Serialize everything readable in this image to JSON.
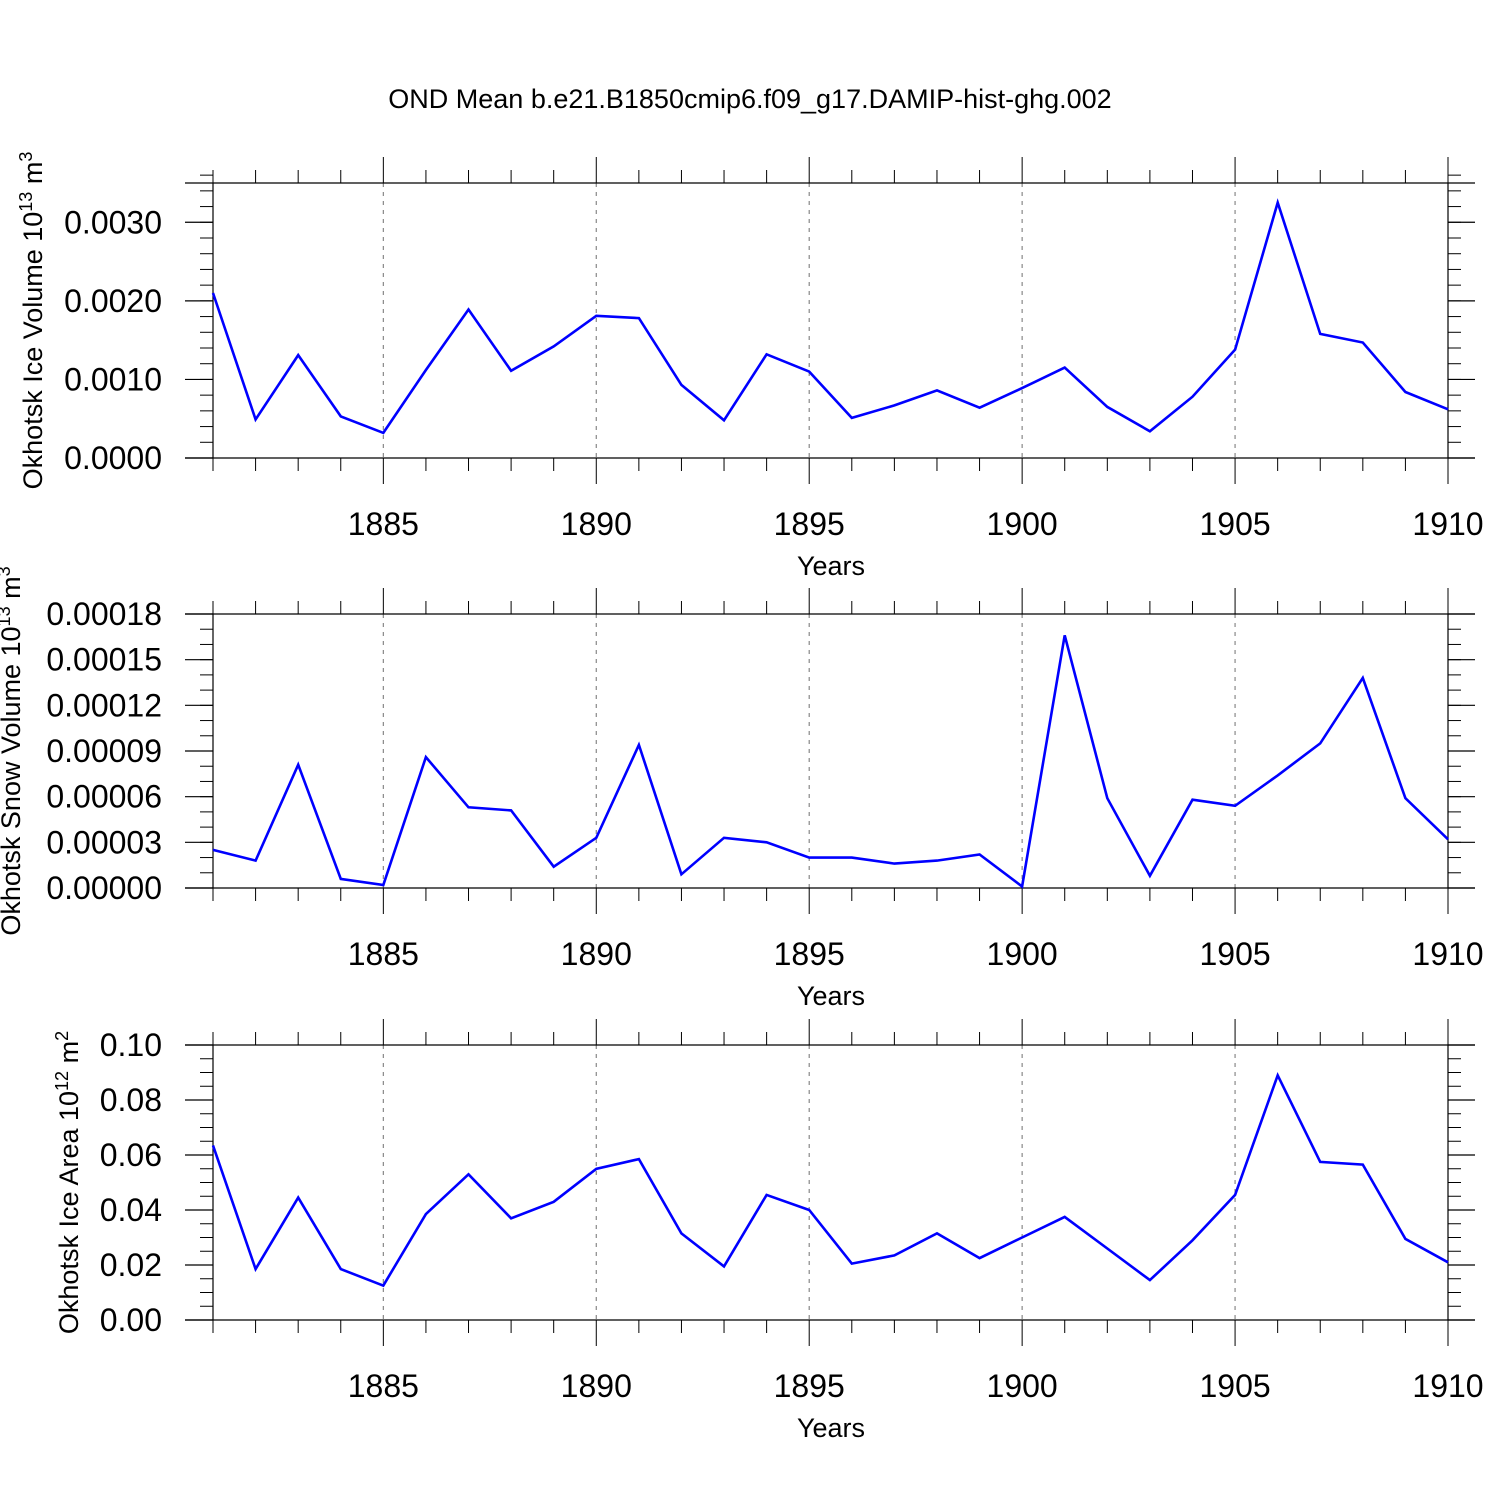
{
  "title": "OND Mean b.e21.B1850cmip6.f09_g17.DAMIP-hist-ghg.002",
  "style": {
    "line_color": "#0000ff",
    "axis_color": "#000000",
    "grid_color": "#888888"
  },
  "chart_data": [
    {
      "type": "line",
      "xlabel": "Years",
      "ylabel_main": "Okhotsk Ice Volume 10",
      "ylabel_exp": "13",
      "ylabel_unit": " m",
      "ylabel_unit_exp": "3",
      "xlim": [
        1881,
        1910.6
      ],
      "ylim": [
        0,
        0.0035
      ],
      "xticks": [
        1885,
        1890,
        1895,
        1900,
        1905,
        1910
      ],
      "yticks": [
        0,
        0.001,
        0.002,
        0.003
      ],
      "ytick_labels": [
        "0.0000",
        "0.0010",
        "0.0020",
        "0.0030"
      ],
      "yminor": 0.0002,
      "x": [
        1881,
        1882,
        1883,
        1884,
        1885,
        1886,
        1887,
        1888,
        1889,
        1890,
        1891,
        1892,
        1893,
        1894,
        1895,
        1896,
        1897,
        1898,
        1899,
        1900,
        1901,
        1902,
        1903,
        1904,
        1905,
        1906,
        1907,
        1908,
        1909,
        1910
      ],
      "values": [
        0.0021,
        0.00049,
        0.00131,
        0.00053,
        0.00032,
        0.00112,
        0.00189,
        0.00111,
        0.00142,
        0.00181,
        0.00178,
        0.00093,
        0.00048,
        0.00132,
        0.0011,
        0.00051,
        0.00067,
        0.00086,
        0.00064,
        0.00089,
        0.00115,
        0.00065,
        0.00034,
        0.00078,
        0.00138,
        0.00325,
        0.00158,
        0.00147,
        0.00084,
        0.00062
      ]
    },
    {
      "type": "line",
      "xlabel": "Years",
      "ylabel_main": "Okhotsk Snow Volume 10",
      "ylabel_exp": "13",
      "ylabel_unit": " m",
      "ylabel_unit_exp": "3",
      "xlim": [
        1881,
        1910.6
      ],
      "ylim": [
        0,
        0.00018
      ],
      "xticks": [
        1885,
        1890,
        1895,
        1900,
        1905,
        1910
      ],
      "yticks": [
        0,
        3e-05,
        6e-05,
        9e-05,
        0.00012,
        0.00015,
        0.00018
      ],
      "ytick_labels": [
        "0.00000",
        "0.00003",
        "0.00006",
        "0.00009",
        "0.00012",
        "0.00015",
        "0.00018"
      ],
      "yminor": 1e-05,
      "x": [
        1881,
        1882,
        1883,
        1884,
        1885,
        1886,
        1887,
        1888,
        1889,
        1890,
        1891,
        1892,
        1893,
        1894,
        1895,
        1896,
        1897,
        1898,
        1899,
        1900,
        1901,
        1902,
        1903,
        1904,
        1905,
        1906,
        1907,
        1908,
        1909,
        1910
      ],
      "values": [
        2.5e-05,
        1.8e-05,
        8.1e-05,
        6e-06,
        2e-06,
        8.6e-05,
        5.3e-05,
        5.1e-05,
        1.4e-05,
        3.3e-05,
        9.4e-05,
        9e-06,
        3.3e-05,
        3e-05,
        2e-05,
        2e-05,
        1.6e-05,
        1.8e-05,
        2.2e-05,
        1e-06,
        0.000166,
        5.9e-05,
        8e-06,
        5.8e-05,
        5.4e-05,
        7.4e-05,
        9.5e-05,
        0.000138,
        5.9e-05,
        3.2e-05
      ]
    },
    {
      "type": "line",
      "xlabel": "Years",
      "ylabel_main": "Okhotsk Ice Area 10",
      "ylabel_exp": "12",
      "ylabel_unit": " m",
      "ylabel_unit_exp": "2",
      "xlim": [
        1881,
        1910.6
      ],
      "ylim": [
        0,
        0.1
      ],
      "xticks": [
        1885,
        1890,
        1895,
        1900,
        1905,
        1910
      ],
      "yticks": [
        0,
        0.02,
        0.04,
        0.06,
        0.08,
        0.1
      ],
      "ytick_labels": [
        "0.00",
        "0.02",
        "0.04",
        "0.06",
        "0.08",
        "0.10"
      ],
      "yminor": 0.005,
      "x": [
        1881,
        1882,
        1883,
        1884,
        1885,
        1886,
        1887,
        1888,
        1889,
        1890,
        1891,
        1892,
        1893,
        1894,
        1895,
        1896,
        1897,
        1898,
        1899,
        1900,
        1901,
        1902,
        1903,
        1904,
        1905,
        1906,
        1907,
        1908,
        1909,
        1910
      ],
      "values": [
        0.0635,
        0.0185,
        0.0445,
        0.0185,
        0.0125,
        0.0385,
        0.053,
        0.037,
        0.043,
        0.055,
        0.0585,
        0.0315,
        0.0195,
        0.0455,
        0.04,
        0.0205,
        0.0235,
        0.0315,
        0.0225,
        0.03,
        0.0375,
        0.026,
        0.0145,
        0.029,
        0.0455,
        0.089,
        0.0575,
        0.0565,
        0.0295,
        0.021
      ]
    }
  ]
}
